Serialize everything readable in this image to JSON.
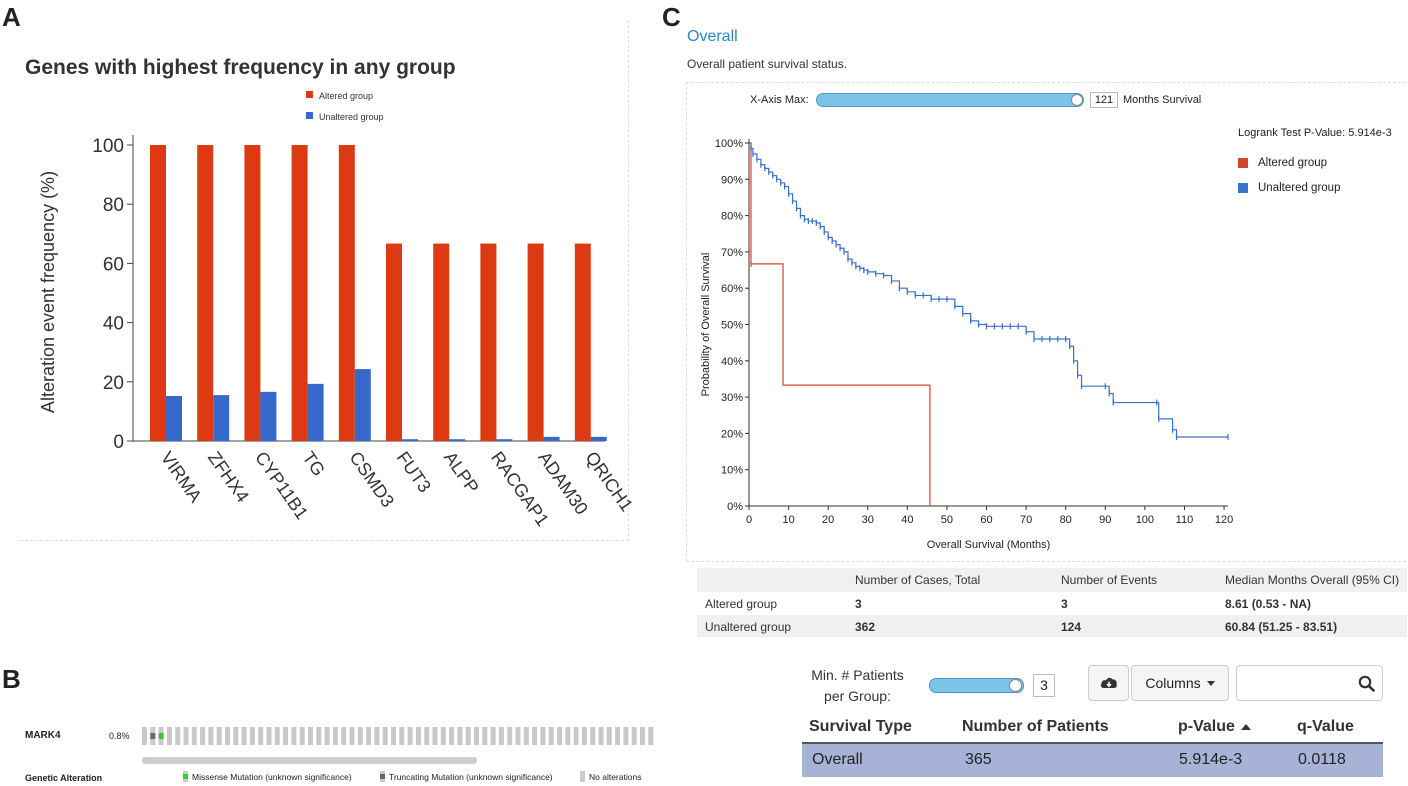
{
  "panels": {
    "a": "A",
    "b": "B",
    "c": "C"
  },
  "colors": {
    "altered": "#dd3a13",
    "unaltered": "#3769cc",
    "km_altered": "#d6452a",
    "km_unaltered": "#3a72c8",
    "header_row": "#a7b3d6",
    "link": "#2a88c8"
  },
  "chart_data": [
    {
      "type": "bar",
      "title": "Genes with highest frequency in any group",
      "ylabel": "Alteration event frequency (%)",
      "xlabel": "",
      "ylim": [
        0,
        100
      ],
      "yticks": [
        "0",
        "20",
        "40",
        "60",
        "80",
        "100"
      ],
      "categories": [
        "VIRMA",
        "ZFHX4",
        "CYP11B1",
        "TG",
        "CSMD3",
        "FUT3",
        "ALPP",
        "RACGAP1",
        "ADAM30",
        "QRICH1"
      ],
      "series": [
        {
          "name": "Altered group",
          "values": [
            100,
            100,
            100,
            100,
            100,
            66.7,
            66.7,
            66.7,
            66.7,
            66.7
          ]
        },
        {
          "name": "Unaltered group",
          "values": [
            15.2,
            15.5,
            16.6,
            19.3,
            24.3,
            0.6,
            0.6,
            0.6,
            1.4,
            1.4
          ]
        }
      ],
      "legend": [
        "Altered group",
        "Unaltered group"
      ]
    },
    {
      "type": "line",
      "subtype": "kaplan-meier",
      "xlabel": "Overall Survival (Months)",
      "ylabel": "Probability of Overall Survival",
      "xlim": [
        0,
        121
      ],
      "ylim": [
        0,
        100
      ],
      "xticks": [
        "0",
        "10",
        "20",
        "30",
        "40",
        "50",
        "60",
        "70",
        "80",
        "90",
        "100",
        "110",
        "120"
      ],
      "yticks": [
        "0%",
        "10%",
        "20%",
        "30%",
        "40%",
        "50%",
        "60%",
        "70%",
        "80%",
        "90%",
        "100%"
      ],
      "logrank": "Logrank Test P-Value: 5.914e-3",
      "legend": [
        "Altered group",
        "Unaltered group"
      ],
      "series": [
        {
          "name": "Altered group",
          "x": [
            0,
            0.5,
            0.5,
            8.6,
            8.6,
            45.7,
            45.7
          ],
          "y": [
            100,
            100,
            66.7,
            66.7,
            33.3,
            33.3,
            0
          ]
        },
        {
          "name": "Unaltered group",
          "x": [
            0,
            0.5,
            1,
            2,
            3,
            4,
            5,
            6,
            7,
            8,
            9,
            10,
            11,
            12,
            13,
            14,
            15,
            16,
            17,
            18,
            19,
            20,
            21,
            22,
            23,
            24,
            25,
            26,
            27,
            28,
            29,
            30,
            32,
            34,
            36,
            38,
            40,
            42,
            44,
            46,
            48,
            50,
            52,
            54,
            56,
            58,
            60,
            62,
            64,
            66,
            68,
            70,
            72,
            74,
            76,
            78,
            80,
            81,
            82,
            83,
            84,
            90,
            91,
            92,
            103,
            103.5,
            107,
            108,
            121
          ],
          "y": [
            100,
            98.5,
            97,
            95.5,
            94,
            93,
            92,
            91,
            90,
            89,
            88,
            86,
            84,
            82,
            80,
            79,
            78.5,
            78.5,
            78,
            77,
            75.5,
            74,
            73,
            72,
            71,
            70,
            68,
            67,
            66,
            65.5,
            65,
            64.5,
            64,
            63.5,
            62,
            60,
            59,
            58,
            58,
            57,
            57,
            57,
            55,
            53,
            51,
            50,
            49.5,
            49.5,
            49.5,
            49.5,
            49.5,
            48,
            46,
            46,
            46,
            46,
            46,
            44,
            40,
            36,
            33,
            33,
            31,
            28.5,
            28.5,
            24,
            21,
            19,
            19
          ]
        }
      ]
    },
    {
      "type": "table",
      "columns": [
        "",
        "Number of Cases, Total",
        "Number of Events",
        "Median Months Overall (95% CI)"
      ],
      "rows": [
        [
          "Altered group",
          "3",
          "3",
          "8.61 (0.53 - NA)"
        ],
        [
          "Unaltered group",
          "362",
          "124",
          "60.84 (51.25 - 83.51)"
        ]
      ]
    }
  ],
  "survival": {
    "heading": "Overall",
    "subtitle": "Overall patient survival status.",
    "xaxis_label": "X-Axis Max:",
    "xaxis_value": "121",
    "xaxis_units": "Months Survival"
  },
  "oncoprint": {
    "gene": "MARK4",
    "percent": "0.8%",
    "num_samples": 62,
    "altered_samples": [
      2
    ],
    "legend_title": "Genetic Alteration",
    "legend": [
      "Missense Mutation (unknown significance)",
      "Truncating Mutation (unknown significance)",
      "No alterations"
    ]
  },
  "filter": {
    "min_label": "Min. # Patients",
    "min_label2": "per Group:",
    "min_value": "3",
    "download_icon": "cloud-download-icon",
    "columns_label": "Columns",
    "search_placeholder": "",
    "headers": [
      "Survival Type",
      "Number of Patients",
      "p-Value",
      "q-Value"
    ],
    "row": [
      "Overall",
      "365",
      "5.914e-3",
      "0.0118"
    ]
  }
}
